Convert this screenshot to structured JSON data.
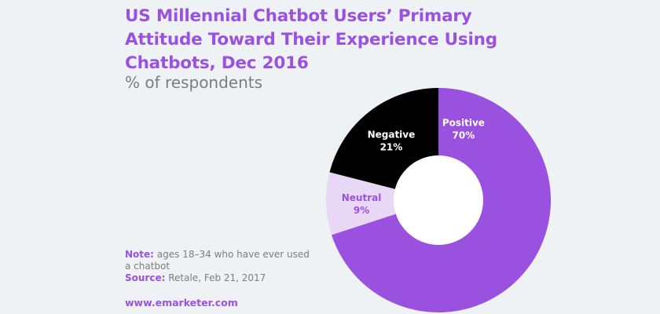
{
  "header": {
    "title": "US Millennial Chatbot Users’ Primary Attitude Toward Their Experience Using Chatbots, Dec 2016",
    "subtitle": "% of respondents"
  },
  "footer": {
    "note_label": "Note:",
    "note_text": "ages 18–34 who have ever used a chatbot",
    "source_label": "Source:",
    "source_text": "Retale, Feb 21, 2017",
    "website": "www.emarketer.com"
  },
  "colors": {
    "background": "#eef2f5",
    "accent": "#9b51e0",
    "muted_text": "#7d7d80"
  },
  "chart_data": {
    "type": "pie",
    "donut": true,
    "title": "US Millennial Chatbot Users’ Primary Attitude Toward Their Experience Using Chatbots, Dec 2016",
    "subtitle": "% of respondents",
    "legend": "none",
    "slices": [
      {
        "label": "Positive",
        "value": 70,
        "value_label": "70%",
        "color": "#9b51e0",
        "text_color": "#ffffff"
      },
      {
        "label": "Neutral",
        "value": 9,
        "value_label": "9%",
        "color": "#e8d7f5",
        "text_color": "#9b51e0"
      },
      {
        "label": "Negative",
        "value": 21,
        "value_label": "21%",
        "color": "#000000",
        "text_color": "#ffffff"
      }
    ]
  }
}
